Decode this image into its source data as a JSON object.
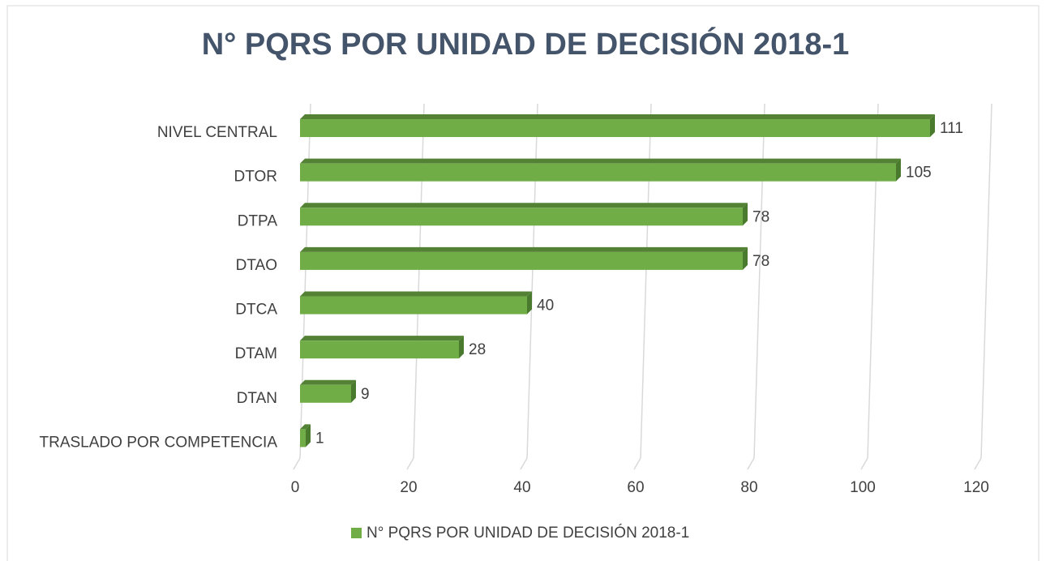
{
  "chart_data": {
    "type": "bar",
    "orientation": "horizontal",
    "title": "N° PQRS POR UNIDAD DE DECISIÓN 2018-1",
    "categories": [
      "NIVEL CENTRAL",
      "DTOR",
      "DTPA",
      "DTAO",
      "DTCA",
      "DTAM",
      "DTAN",
      "TRASLADO POR COMPETENCIA"
    ],
    "series": [
      {
        "name": "N° PQRS POR UNIDAD DE DECISIÓN 2018-1",
        "color": "#70ad47",
        "values": [
          111,
          105,
          78,
          78,
          40,
          28,
          9,
          1
        ]
      }
    ],
    "xlim": [
      0,
      120
    ],
    "xticks": [
      0,
      20,
      40,
      60,
      80,
      100,
      120
    ],
    "grid": true,
    "legend": "bottom"
  }
}
